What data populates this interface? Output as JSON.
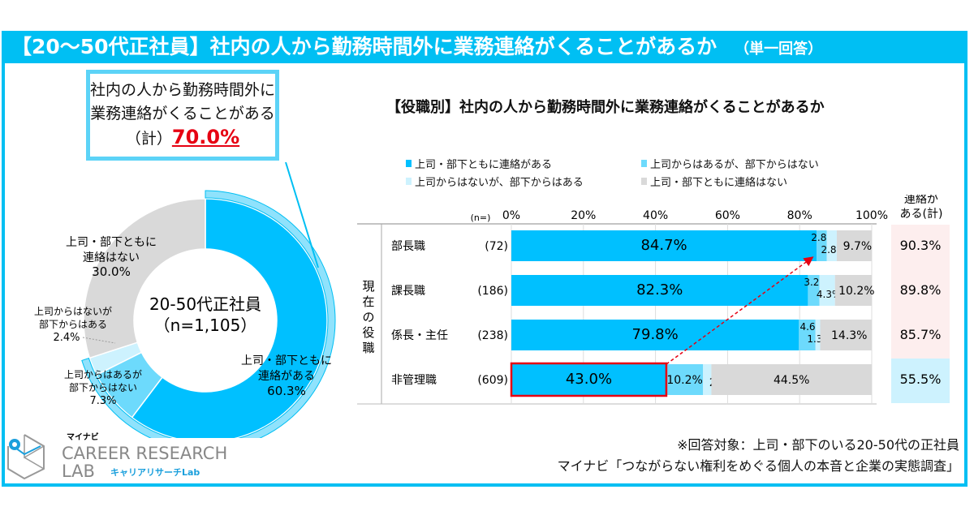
{
  "banner": {
    "title": "【20～50代正社員】社内の人から勤務時間外に業務連絡がくることがあるか",
    "subtitle": "（単一回答）"
  },
  "callout": {
    "line1": "社内の人から勤務時間外に",
    "line2": "業務連絡がくることがある",
    "prefix": "（計）",
    "value": "70.0%"
  },
  "colors": {
    "accent": "#00bff3",
    "dark_blue": "#00c0ff",
    "mid_blue": "#6ddafc",
    "light_blue": "#cdf2fe",
    "gray": "#d9d9d9",
    "red": "#e60012",
    "pink_bg": "#fdeeee",
    "cyan_bg": "#cdf2fe"
  },
  "chart_data": [
    {
      "type": "pie",
      "title": "20-50代正社員",
      "subtitle": "（n=1,105）",
      "center_label_1": "20-50代正社員",
      "center_label_2": "（n=1,105）",
      "slices": [
        {
          "name": "上司・部下ともに連絡がある",
          "label_1": "上司・部下ともに",
          "label_2": "連絡がある",
          "value": 60.3,
          "value_label": "60.3%"
        },
        {
          "name": "上司からはあるが部下からはない",
          "label_1": "上司からはあるが",
          "label_2": "部下からはない",
          "value": 7.3,
          "value_label": "7.3%"
        },
        {
          "name": "上司からはないが部下からはある",
          "label_1": "上司からはないが",
          "label_2": "部下からはある",
          "value": 2.4,
          "value_label": "2.4%"
        },
        {
          "name": "上司・部下ともに連絡はない",
          "label_1": "上司・部下ともに",
          "label_2": "連絡はない",
          "value": 30.0,
          "value_label": "30.0%"
        }
      ],
      "highlight_total": 70.0
    },
    {
      "type": "bar",
      "orientation": "horizontal-stacked",
      "title": "【役職別】社内の人から勤務時間外に業務連絡がくることがあるか",
      "legend": [
        "上司・部下ともに連絡がある",
        "上司からはあるが、部下からはない",
        "上司からはないが、部下からはある",
        "上司・部下ともに連絡はない"
      ],
      "legend_placement": "top",
      "xaxis": {
        "ticks": [
          "0%",
          "20%",
          "40%",
          "60%",
          "80%",
          "100%"
        ],
        "range": [
          0,
          100
        ],
        "grid": true
      },
      "n_header": "(n=)",
      "group_label": "現在の役職",
      "total_header_1": "連絡が",
      "total_header_2": "ある(計)",
      "categories": [
        "部長職",
        "課長職",
        "係長・主任",
        "非管理職"
      ],
      "n": [
        "(72)",
        "(186)",
        "(238)",
        "(609)"
      ],
      "series": [
        {
          "name": "上司・部下ともに連絡がある",
          "values": [
            84.7,
            82.3,
            79.8,
            43.0
          ]
        },
        {
          "name": "上司からはあるが、部下からはない",
          "values": [
            2.8,
            3.2,
            4.6,
            10.2
          ]
        },
        {
          "name": "上司からはないが、部下からはある",
          "values": [
            2.8,
            4.3,
            1.3,
            2.3
          ]
        },
        {
          "name": "上司・部下ともに連絡はない",
          "values": [
            9.7,
            10.2,
            14.3,
            44.5
          ]
        }
      ],
      "totals": [
        "90.3%",
        "89.8%",
        "85.7%",
        "55.5%"
      ],
      "highlight": {
        "category": "非管理職",
        "series": "上司・部下ともに連絡がある",
        "arrow_to": "部長職"
      }
    }
  ],
  "logo": {
    "brand_small": "マイナビ",
    "line1": "CAREER RESEARCH",
    "line2": "LAB",
    "kana": "キャリアリサーチLab"
  },
  "footer": {
    "note": "※回答対象：上司・部下のいる20-50代の正社員",
    "source": "マイナビ「つながらない権利をめぐる個人の本音と企業の実態調査」"
  }
}
